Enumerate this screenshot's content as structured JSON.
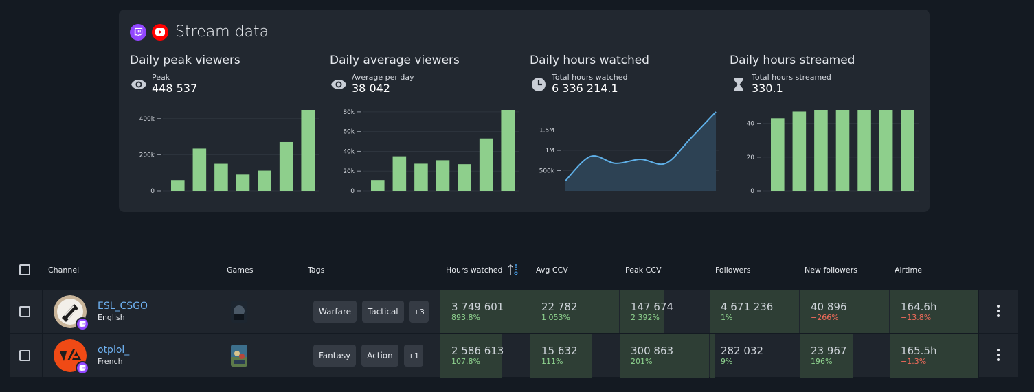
{
  "card": {
    "title": "Stream data",
    "platform_icons": [
      "twitch-icon",
      "youtube-icon"
    ]
  },
  "stats": [
    {
      "title": "Daily peak viewers",
      "label": "Peak",
      "value": "448 537",
      "icon": "eye-icon"
    },
    {
      "title": "Daily average viewers",
      "label": "Average per day",
      "value": "38 042",
      "icon": "eye-icon"
    },
    {
      "title": "Daily hours watched",
      "label": "Total hours watched",
      "value": "6 336 214.1",
      "icon": "clock-icon"
    },
    {
      "title": "Daily hours streamed",
      "label": "Total hours streamed",
      "value": "330.1",
      "icon": "hourglass-icon"
    }
  ],
  "chart_data": [
    {
      "type": "bar",
      "title": "Daily peak viewers",
      "ylim": [
        0,
        448537
      ],
      "yticks": [
        {
          "v": 0,
          "label": "0"
        },
        {
          "v": 200000,
          "label": "200k"
        },
        {
          "v": 400000,
          "label": "400k"
        }
      ],
      "values": [
        60000,
        234000,
        150000,
        90000,
        112000,
        270000,
        448537
      ],
      "color": "#8ecf8c"
    },
    {
      "type": "bar",
      "title": "Daily average viewers",
      "ylim": [
        0,
        82000
      ],
      "yticks": [
        {
          "v": 0,
          "label": "0"
        },
        {
          "v": 20000,
          "label": "20k"
        },
        {
          "v": 40000,
          "label": "40k"
        },
        {
          "v": 60000,
          "label": "60k"
        },
        {
          "v": 80000,
          "label": "80k"
        }
      ],
      "values": [
        11000,
        35000,
        27500,
        31000,
        27000,
        53000,
        82000
      ],
      "color": "#8ecf8c"
    },
    {
      "type": "area",
      "title": "Daily hours watched",
      "ylim": [
        0,
        2000000
      ],
      "yticks": [
        {
          "v": 500000,
          "label": "500k"
        },
        {
          "v": 1000000,
          "label": "1M"
        },
        {
          "v": 1500000,
          "label": "1.5M"
        }
      ],
      "values": [
        250000,
        850000,
        680000,
        780000,
        680000,
        1300000,
        1950000
      ],
      "color": "#5fb0e8"
    },
    {
      "type": "bar",
      "title": "Daily hours streamed",
      "ylim": [
        0,
        48
      ],
      "yticks": [
        {
          "v": 0,
          "label": "0"
        },
        {
          "v": 20,
          "label": "20"
        },
        {
          "v": 40,
          "label": "40"
        }
      ],
      "values": [
        43,
        47,
        48,
        48,
        48,
        48,
        48
      ],
      "color": "#8ecf8c"
    }
  ],
  "table": {
    "columns": {
      "channel": "Channel",
      "games": "Games",
      "tags": "Tags",
      "hours_watched": "Hours watched",
      "avg_ccv": "Avg CCV",
      "peak_ccv": "Peak CCV",
      "followers": "Followers",
      "new_followers": "New followers",
      "airtime": "Airtime"
    },
    "rows": [
      {
        "name": "ESL_CSGO",
        "language": "English",
        "tags": [
          "Warfare",
          "Tactical"
        ],
        "more_tags": "+3",
        "metrics": [
          {
            "value": "3 749 601",
            "pct": "893.8%",
            "trend": "pos",
            "fill": 1.0
          },
          {
            "value": "22 782",
            "pct": "1 053%",
            "trend": "pos",
            "fill": 1.0
          },
          {
            "value": "147 674",
            "pct": "2 392%",
            "trend": "pos",
            "fill": 0.49
          },
          {
            "value": "4 671 236",
            "pct": "1%",
            "trend": "pos",
            "fill": 1.0
          },
          {
            "value": "40 896",
            "pct": "−266%",
            "trend": "neg",
            "fill": 1.0
          },
          {
            "value": "164.6h",
            "pct": "−13.8%",
            "trend": "neg",
            "fill": 0.99
          }
        ]
      },
      {
        "name": "otplol_",
        "language": "French",
        "tags": [
          "Fantasy",
          "Action"
        ],
        "more_tags": "+1",
        "metrics": [
          {
            "value": "2 586 613",
            "pct": "107.8%",
            "trend": "pos",
            "fill": 0.69
          },
          {
            "value": "15 632",
            "pct": "111%",
            "trend": "pos",
            "fill": 0.69
          },
          {
            "value": "300 863",
            "pct": "201%",
            "trend": "pos",
            "fill": 1.0
          },
          {
            "value": "282 032",
            "pct": "9%",
            "trend": "pos",
            "fill": 0.06
          },
          {
            "value": "23 967",
            "pct": "196%",
            "trend": "pos",
            "fill": 0.59
          },
          {
            "value": "165.5h",
            "pct": "−1.3%",
            "trend": "neg",
            "fill": 1.0
          }
        ]
      }
    ]
  }
}
